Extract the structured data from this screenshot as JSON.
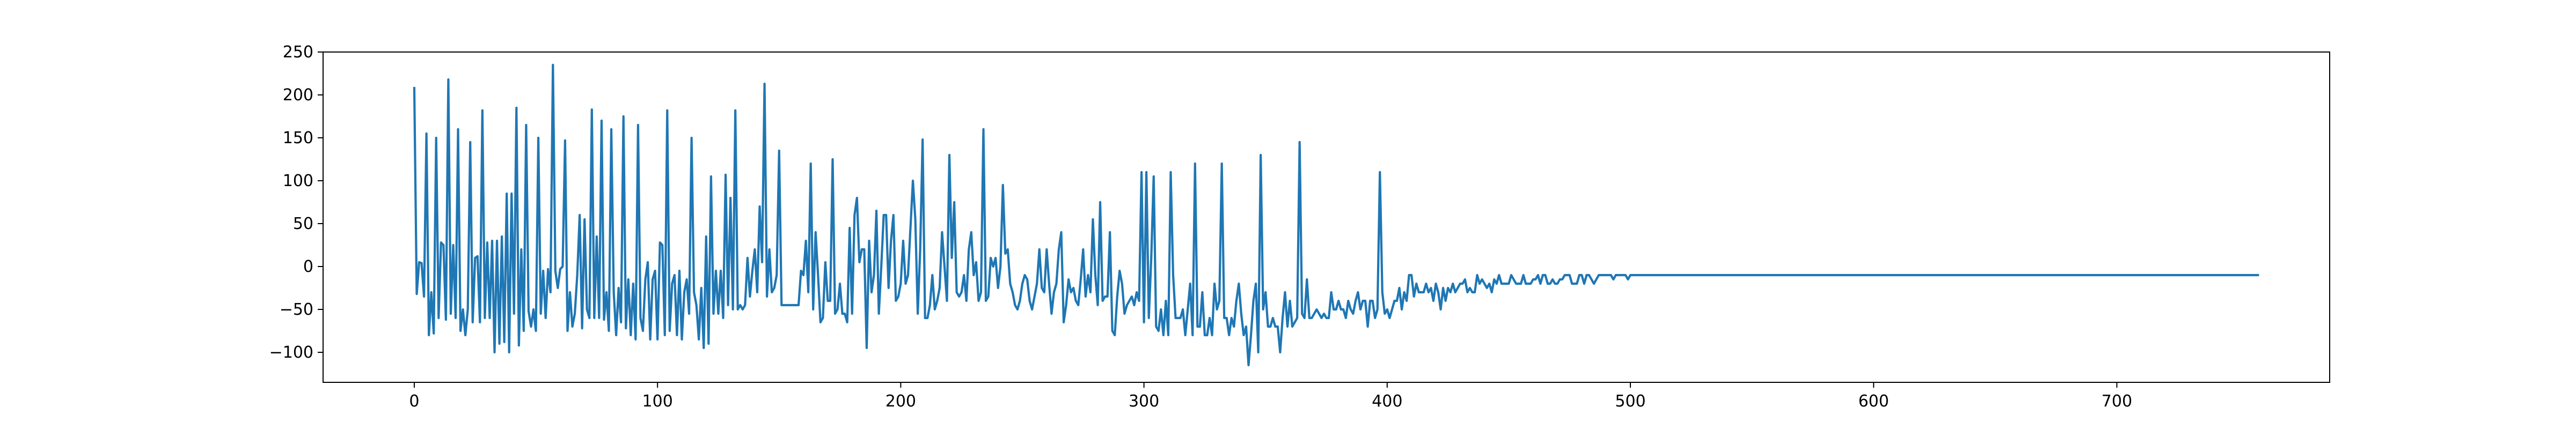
{
  "chart_data": {
    "type": "line",
    "title": "",
    "xlabel": "",
    "ylabel": "",
    "xlim": [
      -37.5,
      787.5
    ],
    "ylim": [
      -135,
      250
    ],
    "xticks": [
      0,
      100,
      200,
      300,
      400,
      500,
      600,
      700
    ],
    "xtick_labels": [
      "0",
      "100",
      "200",
      "300",
      "400",
      "500",
      "600",
      "700"
    ],
    "yticks": [
      -100,
      -50,
      0,
      50,
      100,
      150,
      200,
      250
    ],
    "ytick_labels": [
      "−100",
      "−50",
      "0",
      "50",
      "100",
      "150",
      "200",
      "250"
    ],
    "grid": false,
    "legend": "none",
    "series": [
      {
        "color": "#1f77b4",
        "x_start": 0,
        "x_step": 1,
        "values": [
          208,
          -32,
          5,
          4,
          -35,
          155,
          -80,
          -30,
          -78,
          150,
          -60,
          28,
          25,
          -62,
          218,
          -55,
          25,
          -60,
          160,
          -75,
          -50,
          -80,
          -50,
          145,
          -65,
          10,
          12,
          -65,
          182,
          -60,
          28,
          -60,
          30,
          -100,
          30,
          -90,
          35,
          -88,
          85,
          -100,
          85,
          -55,
          185,
          -92,
          20,
          -75,
          165,
          -52,
          -70,
          -50,
          -75,
          150,
          -55,
          -5,
          -60,
          -3,
          -30,
          235,
          -5,
          -25,
          -3,
          0,
          147,
          -75,
          -30,
          -70,
          -55,
          -10,
          60,
          -72,
          55,
          -50,
          -60,
          183,
          -60,
          35,
          -60,
          170,
          -62,
          -30,
          -75,
          160,
          -30,
          -80,
          -25,
          -65,
          175,
          -72,
          -15,
          -80,
          -20,
          -85,
          165,
          -60,
          -75,
          -15,
          5,
          -85,
          -15,
          -5,
          -85,
          28,
          25,
          -80,
          182,
          -75,
          -20,
          -10,
          -80,
          -5,
          -85,
          -30,
          -15,
          -55,
          150,
          -30,
          -45,
          -85,
          -25,
          -95,
          35,
          -90,
          105,
          -55,
          -5,
          -55,
          -5,
          -60,
          107,
          -45,
          80,
          -50,
          182,
          -50,
          -45,
          -50,
          -45,
          10,
          -35,
          -5,
          20,
          -30,
          70,
          5,
          213,
          -35,
          20,
          -30,
          -25,
          -10,
          135,
          -45,
          -45,
          -45,
          -45,
          -45,
          -45,
          -45,
          -45,
          -5,
          -10,
          30,
          -30,
          120,
          -50,
          40,
          -10,
          -65,
          -60,
          5,
          -40,
          -40,
          125,
          -55,
          -50,
          -20,
          -55,
          -55,
          -65,
          45,
          -55,
          60,
          80,
          5,
          20,
          20,
          -95,
          30,
          -30,
          -10,
          65,
          -55,
          0,
          60,
          60,
          -25,
          30,
          60,
          -40,
          -35,
          -20,
          30,
          -20,
          -10,
          45,
          100,
          55,
          -55,
          20,
          148,
          -60,
          -60,
          -45,
          -10,
          -50,
          -40,
          -25,
          40,
          0,
          -40,
          130,
          10,
          75,
          -30,
          -35,
          -30,
          -10,
          -40,
          20,
          40,
          -10,
          5,
          -40,
          -30,
          160,
          -40,
          -35,
          10,
          0,
          10,
          -25,
          0,
          95,
          15,
          20,
          -20,
          -30,
          -45,
          -50,
          -40,
          -20,
          -10,
          -15,
          -40,
          -50,
          -35,
          -20,
          20,
          -25,
          -30,
          20,
          -20,
          -55,
          -30,
          -20,
          20,
          40,
          -65,
          -45,
          -15,
          -30,
          -25,
          -40,
          -45,
          -15,
          20,
          -35,
          -10,
          -30,
          55,
          -10,
          -45,
          75,
          -40,
          -35,
          -35,
          40,
          -75,
          -80,
          -35,
          -5,
          -20,
          -55,
          -45,
          -40,
          -35,
          -45,
          -30,
          -40,
          110,
          -65,
          110,
          -60,
          10,
          105,
          -70,
          -75,
          -50,
          -80,
          -40,
          -80,
          110,
          -10,
          -60,
          -60,
          -60,
          -50,
          -80,
          -50,
          -20,
          -80,
          120,
          -70,
          -70,
          -30,
          -80,
          -80,
          -60,
          -80,
          -20,
          -50,
          -40,
          120,
          -60,
          -60,
          -80,
          -60,
          -70,
          -40,
          -20,
          -55,
          -80,
          -70,
          -115,
          -80,
          -40,
          -20,
          -100,
          130,
          -50,
          -30,
          -70,
          -70,
          -60,
          -70,
          -70,
          -100,
          -60,
          -30,
          -70,
          -40,
          -70,
          -65,
          -60,
          145,
          -55,
          -60,
          -15,
          -60,
          -60,
          -55,
          -50,
          -55,
          -60,
          -55,
          -60,
          -60,
          -30,
          -50,
          -50,
          -40,
          -50,
          -50,
          -60,
          -40,
          -50,
          -55,
          -40,
          -30,
          -50,
          -40,
          -40,
          -70,
          -40,
          -40,
          -60,
          -50,
          110,
          -30,
          -55,
          -50,
          -60,
          -50,
          -40,
          -40,
          -25,
          -50,
          -30,
          -40,
          -10,
          -10,
          -35,
          -20,
          -30,
          -30,
          -30,
          -20,
          -30,
          -25,
          -40,
          -20,
          -30,
          -50,
          -25,
          -40,
          -25,
          -30,
          -20,
          -30,
          -25,
          -20,
          -20,
          -15,
          -30,
          -25,
          -30,
          -30,
          -10,
          -20,
          -15,
          -20,
          -25,
          -20,
          -30,
          -15,
          -20,
          -10,
          -20,
          -20,
          -20,
          -20,
          -10,
          -15,
          -20,
          -20,
          -20,
          -10,
          -20,
          -20,
          -20,
          -15,
          -15,
          -10,
          -20,
          -10,
          -10,
          -20,
          -20,
          -15,
          -20,
          -20,
          -15,
          -15,
          -10,
          -10,
          -10,
          -20,
          -20,
          -20,
          -10,
          -10,
          -20,
          -10,
          -10,
          -15,
          -20,
          -15,
          -10,
          -10,
          -10,
          -10,
          -10,
          -10,
          -15,
          -10,
          -10,
          -10,
          -10,
          -10,
          -15,
          -10,
          -10,
          -10,
          -10,
          -10,
          -10,
          -10,
          -10,
          -10,
          -10,
          -10,
          -10,
          -10,
          -10,
          -10,
          -10,
          -10,
          -10,
          -10,
          -10,
          -10,
          -10,
          -10,
          -10,
          -10,
          -10,
          -10,
          -10,
          -10,
          -10,
          -10,
          -10,
          -10,
          -10,
          -10,
          -10,
          -10,
          -10,
          -10,
          -10,
          -10,
          -10,
          -10,
          -10,
          -10,
          -10,
          -10,
          -10,
          -10,
          -10,
          -10,
          -10,
          -10,
          -10,
          -10,
          -10,
          -10,
          -10,
          -10,
          -10,
          -10,
          -10,
          -10,
          -10,
          -10,
          -10,
          -10,
          -10,
          -10,
          -10,
          -10,
          -10,
          -10,
          -10,
          -10,
          -10,
          -10,
          -10,
          -10,
          -10,
          -10,
          -10,
          -10,
          -10,
          -10,
          -10,
          -10,
          -10,
          -10,
          -10,
          -10,
          -10,
          -10,
          -10,
          -10,
          -10,
          -10,
          -10,
          -10,
          -10,
          -10,
          -10,
          -10,
          -10,
          -10,
          -10,
          -10,
          -10,
          -10,
          -10,
          -10,
          -10,
          -10,
          -10,
          -10,
          -10,
          -10,
          -10,
          -10,
          -10,
          -10,
          -10,
          -10,
          -10,
          -10,
          -10,
          -10,
          -10,
          -10,
          -10,
          -10,
          -10,
          -10,
          -10,
          -10,
          -10,
          -10,
          -10,
          -10,
          -10,
          -10,
          -10,
          -10,
          -10,
          -10,
          -10,
          -10,
          -10,
          -10,
          -10,
          -10,
          -10,
          -10,
          -10,
          -10,
          -10,
          -10,
          -10,
          -10,
          -10,
          -10,
          -10,
          -10,
          -10,
          -10,
          -10,
          -10,
          -10,
          -10,
          -10,
          -10,
          -10,
          -10,
          -10,
          -10,
          -10,
          -10,
          -10,
          -10,
          -10,
          -10,
          -10,
          -10,
          -10,
          -10,
          -10,
          -10,
          -10,
          -10,
          -10,
          -10,
          -10,
          -10,
          -10,
          -10,
          -10,
          -10,
          -10,
          -10,
          -10,
          -10,
          -10,
          -10,
          -10,
          -10,
          -10,
          -10,
          -10,
          -10,
          -10,
          -10,
          -10,
          -10,
          -10,
          -10,
          -10,
          -10,
          -10,
          -10,
          -10,
          -10,
          -10,
          -10,
          -10,
          -10,
          -10,
          -10,
          -10,
          -10,
          -10,
          -10,
          -10,
          -10,
          -10,
          -10,
          -10,
          -10,
          -10,
          -10,
          -10,
          -10,
          -10,
          -10,
          -10,
          -10,
          -10,
          -10,
          -10,
          -10,
          -10,
          -10,
          -10,
          -10,
          -10,
          -10,
          -10,
          -10,
          -10,
          -10
        ]
      }
    ]
  }
}
